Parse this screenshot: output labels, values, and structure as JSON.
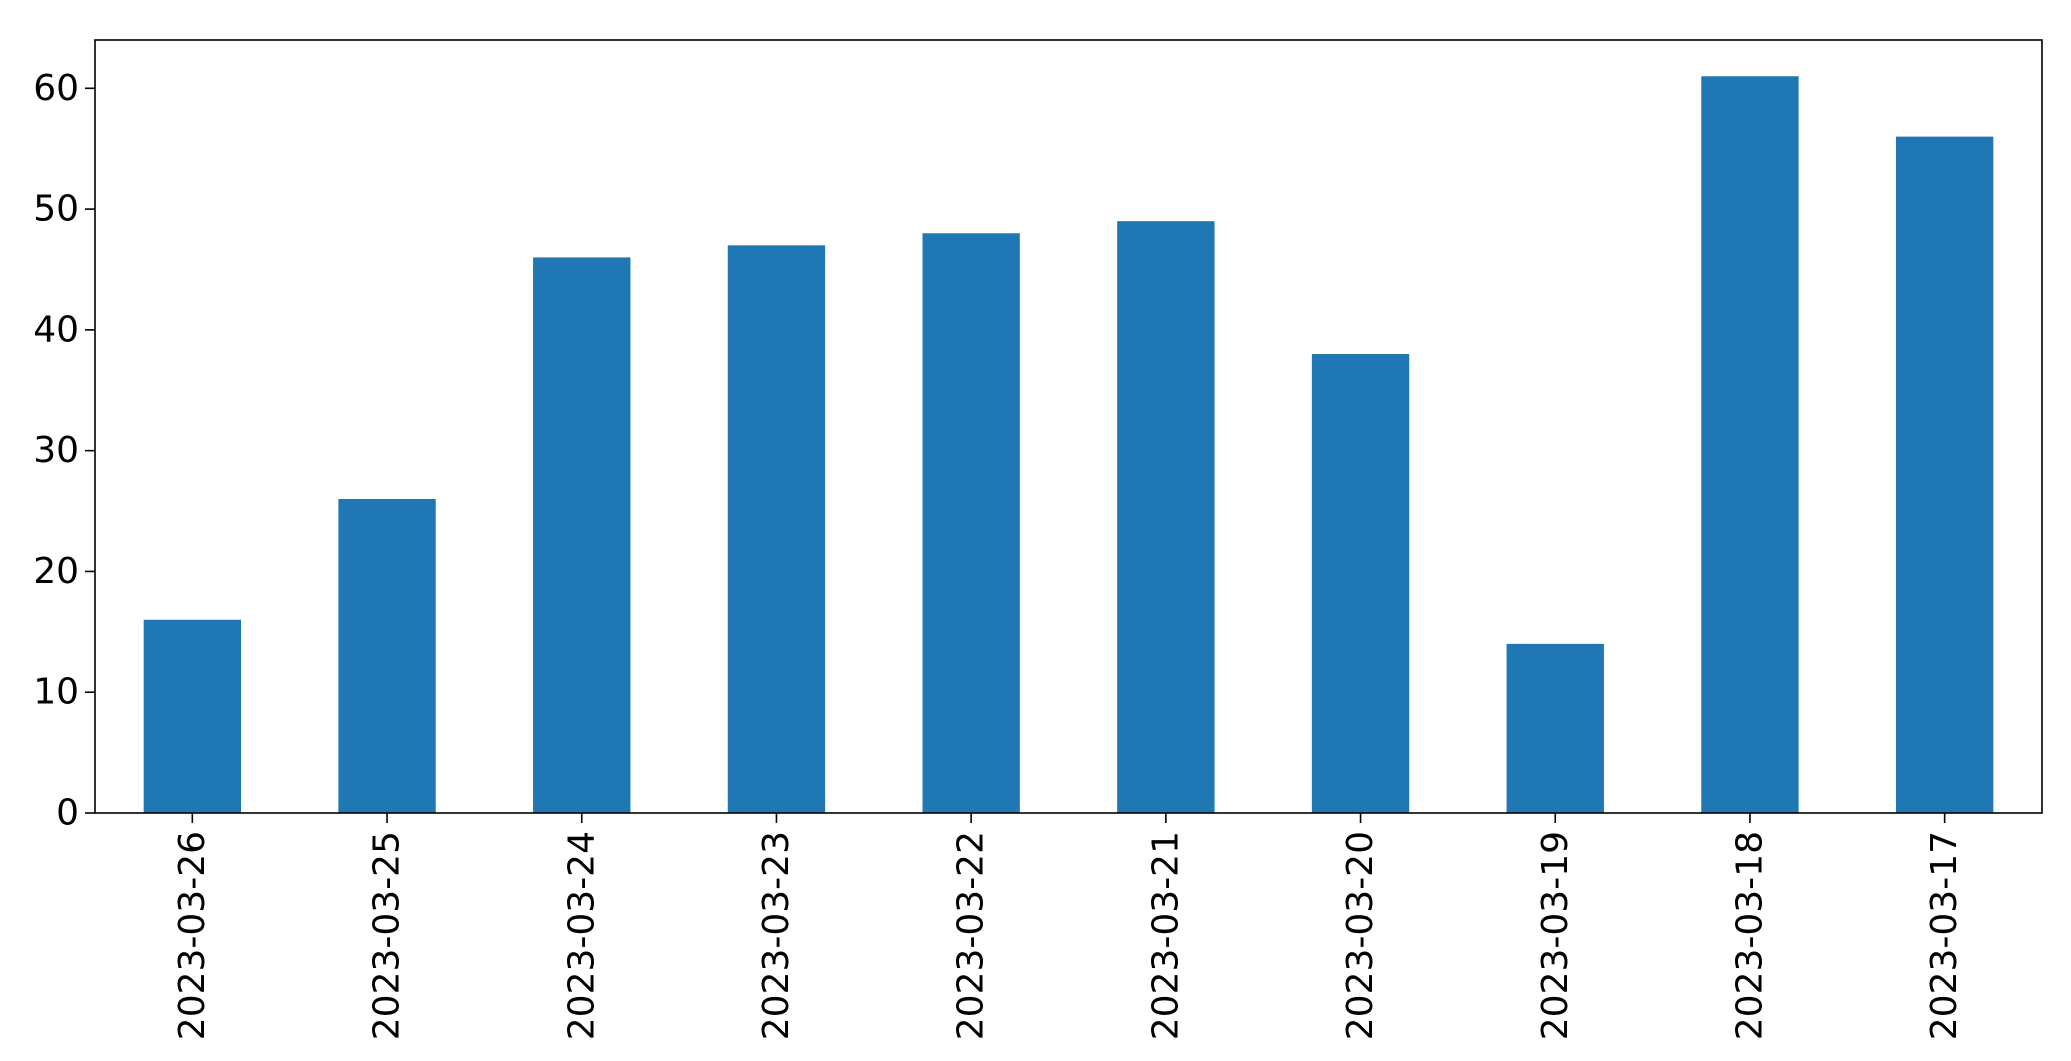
{
  "chart_data": {
    "type": "bar",
    "title": "",
    "xlabel": "",
    "ylabel": "",
    "categories": [
      "2023-03-26",
      "2023-03-25",
      "2023-03-24",
      "2023-03-23",
      "2023-03-22",
      "2023-03-21",
      "2023-03-20",
      "2023-03-19",
      "2023-03-18",
      "2023-03-17"
    ],
    "values": [
      16,
      26,
      46,
      47,
      48,
      49,
      38,
      14,
      61,
      56
    ],
    "ylim": [
      0,
      64
    ],
    "yticks": [
      0,
      10,
      20,
      30,
      40,
      50,
      60
    ],
    "grid": false,
    "legend": "none",
    "bar_color": "#1f77b4"
  }
}
